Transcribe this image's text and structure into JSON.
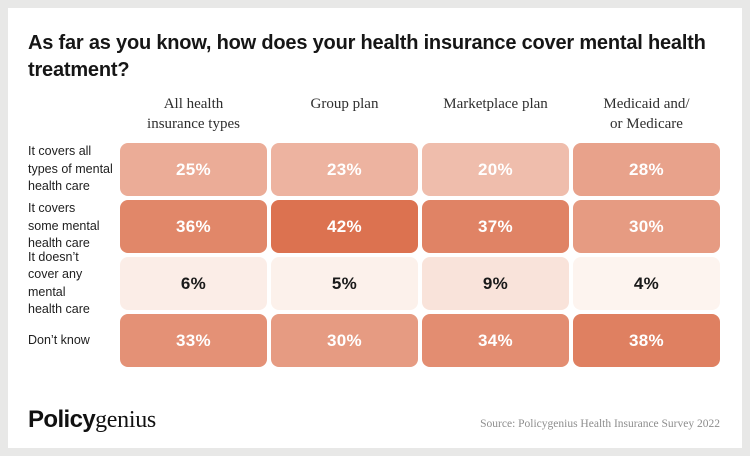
{
  "page": {
    "background_color": "#E8E8E7",
    "card_color": "#FFFFFF"
  },
  "header": {
    "title_display": "As far as you know, how does your health insurance cover mental health\ntreatment?"
  },
  "chart_data": {
    "type": "heatmap",
    "title": "As far as you know, how does your health insurance cover mental health treatment?",
    "unit": "%",
    "columns": [
      "All health insurance types",
      "Group plan",
      "Marketplace plan",
      "Medicaid and/or Medicare"
    ],
    "column_display": [
      "All health\ninsurance types",
      "Group plan",
      "Marketplace plan",
      "Medicaid and/\nor Medicare"
    ],
    "rows": [
      "It covers all types of mental health care",
      "It covers some mental health care",
      "It doesn’t cover any mental health care",
      "Don’t know"
    ],
    "row_display": [
      "It covers all\ntypes of mental\nhealth care",
      "It covers\nsome mental\nhealth care",
      "It doesn’t\ncover any mental\nhealth care",
      "Don’t know"
    ],
    "values": [
      [
        25,
        23,
        20,
        28
      ],
      [
        36,
        42,
        37,
        30
      ],
      [
        6,
        5,
        9,
        4
      ],
      [
        33,
        30,
        34,
        38
      ]
    ],
    "color_scale": {
      "min_value": 4,
      "max_value": 42,
      "min_color": "#FDF4EF",
      "max_color": "#DC7250",
      "dark_text_threshold": 15,
      "text_on_light": "#1A1A1A",
      "text_on_dark": "#FFFFFF"
    },
    "legend": "none",
    "grid": "off"
  },
  "footer": {
    "logo_policy": "Policy",
    "logo_genius": "genius",
    "source": "Source: Policygenius Health Insurance Survey 2022"
  }
}
